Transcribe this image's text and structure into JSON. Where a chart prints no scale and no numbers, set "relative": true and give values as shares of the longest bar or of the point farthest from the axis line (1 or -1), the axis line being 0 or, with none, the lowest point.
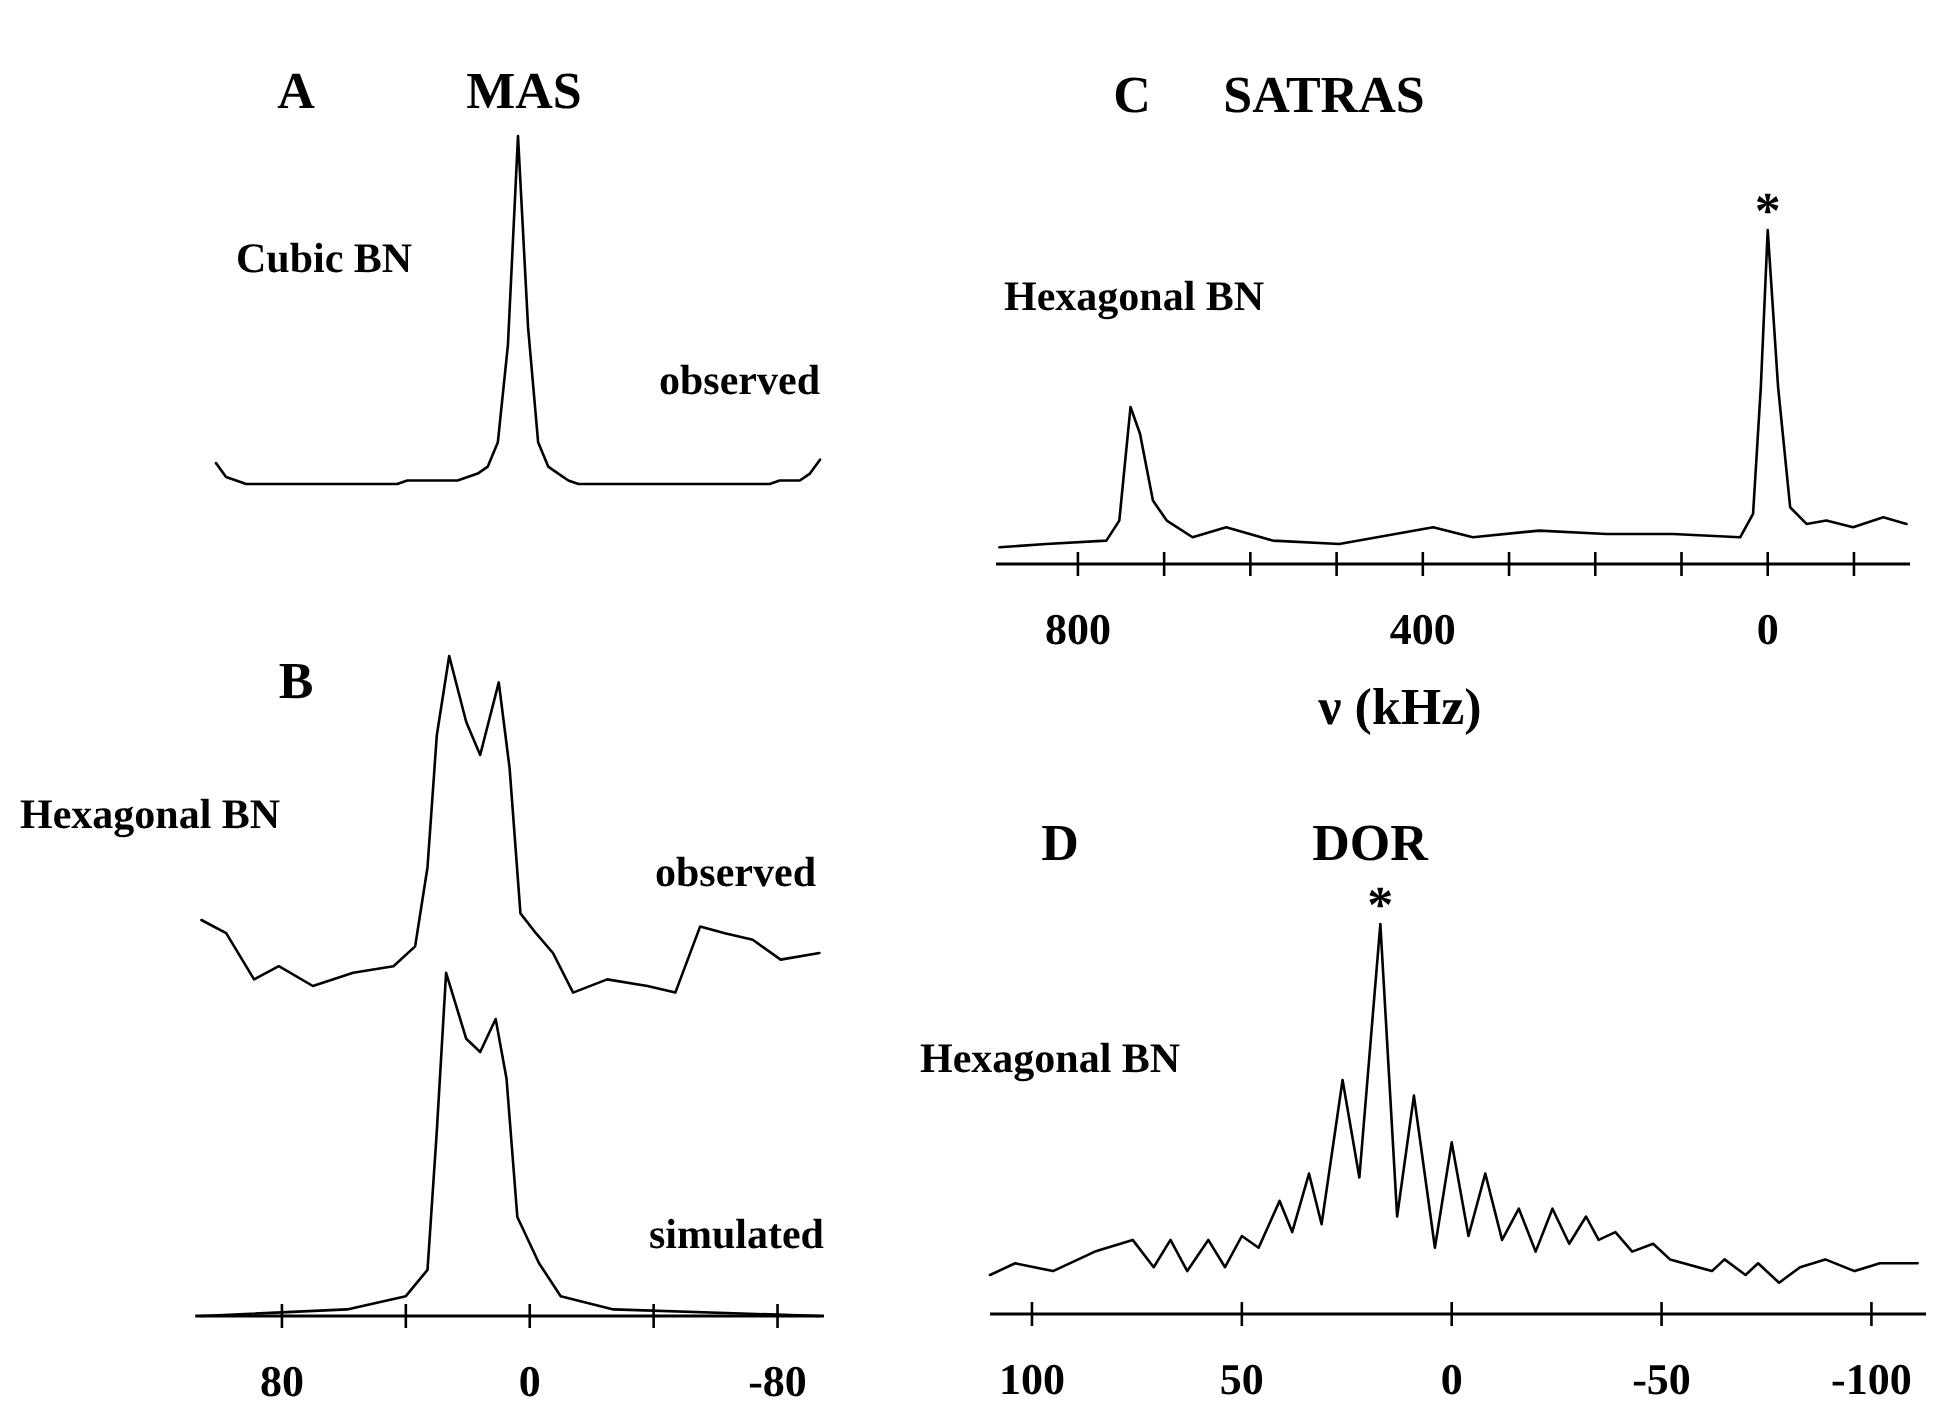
{
  "chart_data": [
    {
      "type": "line",
      "relative": true,
      "title": "MAS",
      "tick_labels": false,
      "categories": [
        null,
        null,
        null,
        null,
        null,
        null,
        null,
        null,
        null,
        null,
        null,
        null,
        null,
        null,
        null,
        null,
        null,
        null,
        null,
        null,
        null,
        null,
        null,
        null,
        null,
        null,
        null,
        null,
        null,
        null,
        null,
        null,
        null,
        null,
        null,
        null,
        null,
        null,
        null,
        null,
        null,
        null,
        null,
        null,
        null,
        null,
        null,
        null,
        null,
        null,
        null,
        null,
        null,
        null,
        null,
        null,
        null,
        null,
        null,
        null,
        null
      ],
      "annotations": [
        "A",
        "Cubic BN"
      ],
      "series": [
        {
          "name": "observed",
          "color": "#000000",
          "values": [
            0.06,
            0.02,
            0.01,
            0,
            0,
            0,
            0,
            0,
            0,
            0,
            0,
            0,
            0,
            0,
            0,
            0,
            0,
            0,
            0,
            0.01,
            0.01,
            0.01,
            0.01,
            0.01,
            0.01,
            0.02,
            0.03,
            0.05,
            0.12,
            0.4,
            1,
            0.45,
            0.12,
            0.05,
            0.03,
            0.01,
            0,
            0,
            0,
            0,
            0,
            0,
            0,
            0,
            0,
            0,
            0,
            0,
            0,
            0,
            0,
            0,
            0,
            0,
            0,
            0,
            0.01,
            0.01,
            0.01,
            0.03,
            0.07
          ]
        }
      ]
    },
    {
      "type": "line",
      "relative": true,
      "tick_labels": "x",
      "xlim": [
        108,
        -95
      ],
      "xticks": [
        80,
        {
          "value": 40,
          "label": null
        },
        0,
        {
          "value": -40,
          "label": null
        },
        -80
      ],
      "annotations": [
        "B",
        "Hexagonal BN"
      ],
      "series": [
        {
          "name": "observed",
          "color": "#000000",
          "x": [
            106,
            98,
            89,
            81,
            70,
            57,
            44,
            37,
            33,
            30,
            26,
            20.5,
            16,
            10,
            6.5,
            3,
            -2,
            -7.5,
            -14,
            -25,
            -38,
            -47,
            -55,
            -63,
            -72,
            -81,
            -93.5
          ],
          "values": [
            0.6,
            0.58,
            0.51,
            0.53,
            0.5,
            0.52,
            0.53,
            0.56,
            0.68,
            0.88,
            1,
            0.9,
            0.85,
            0.96,
            0.83,
            0.61,
            0.58,
            0.55,
            0.49,
            0.51,
            0.5,
            0.49,
            0.59,
            0.58,
            0.57,
            0.54,
            0.55
          ]
        },
        {
          "name": "simulated",
          "color": "#000000",
          "x": [
            106,
            59,
            40,
            33,
            30,
            27,
            20.5,
            16,
            11,
            7.5,
            4,
            -3,
            -10,
            -27,
            -93.5
          ],
          "values": [
            0,
            0.01,
            0.03,
            0.07,
            0.28,
            0.52,
            0.42,
            0.4,
            0.45,
            0.36,
            0.15,
            0.08,
            0.03,
            0.01,
            0
          ]
        }
      ]
    },
    {
      "type": "line",
      "relative": true,
      "title": "SATRAS",
      "xlabel": "ν (kHz)",
      "tick_labels": "x",
      "xlim": [
        895,
        -165
      ],
      "xticks": [
        800,
        {
          "value": 700,
          "label": null
        },
        {
          "value": 600,
          "label": null
        },
        {
          "value": 500,
          "label": null
        },
        400,
        {
          "value": 300,
          "label": null
        },
        {
          "value": 200,
          "label": null
        },
        {
          "value": 100,
          "label": null
        },
        0,
        {
          "value": -100,
          "label": null
        }
      ],
      "annotations": [
        "C",
        "Hexagonal BN",
        {
          "text": "*",
          "x": 0,
          "y": 1
        }
      ],
      "series": [
        {
          "color": "#000000",
          "x": [
            891,
            837,
            767,
            752,
            739,
            728,
            713,
            697,
            667,
            628,
            574,
            497,
            388,
            342,
            265,
            187,
            110,
            32,
            17,
            8,
            0,
            -12,
            -26,
            -45,
            -68,
            -99,
            -134,
            -161
          ],
          "values": [
            0.05,
            0.06,
            0.07,
            0.13,
            0.47,
            0.39,
            0.19,
            0.13,
            0.08,
            0.11,
            0.07,
            0.06,
            0.11,
            0.08,
            0.1,
            0.09,
            0.09,
            0.08,
            0.15,
            0.53,
            1,
            0.53,
            0.17,
            0.12,
            0.13,
            0.11,
            0.14,
            0.12
          ]
        }
      ]
    },
    {
      "type": "line",
      "relative": true,
      "title": "DOR",
      "tick_labels": "x",
      "xlim": [
        110,
        -113
      ],
      "xticks": [
        100,
        50,
        0,
        -50,
        -100
      ],
      "annotations": [
        "D",
        "Hexagonal BN",
        {
          "text": "*",
          "x": 17,
          "y": 1
        }
      ],
      "series": [
        {
          "color": "#000000",
          "x": [
            110,
            104,
            95,
            85,
            76,
            71,
            67,
            63,
            58,
            54,
            50,
            46,
            41,
            38,
            34,
            31,
            26,
            22,
            17,
            13,
            9,
            4,
            0,
            -4,
            -8,
            -12,
            -16,
            -20,
            -24,
            -28,
            -32,
            -35,
            -39,
            -43,
            -48,
            -52,
            -62,
            -65,
            -70,
            -73,
            -78,
            -83,
            -89,
            -96,
            -102,
            -111
          ],
          "values": [
            0.1,
            0.13,
            0.11,
            0.16,
            0.19,
            0.12,
            0.19,
            0.11,
            0.19,
            0.12,
            0.2,
            0.17,
            0.29,
            0.21,
            0.36,
            0.23,
            0.6,
            0.35,
            1,
            0.25,
            0.56,
            0.17,
            0.44,
            0.2,
            0.36,
            0.19,
            0.27,
            0.16,
            0.27,
            0.18,
            0.25,
            0.19,
            0.21,
            0.16,
            0.18,
            0.14,
            0.11,
            0.14,
            0.1,
            0.13,
            0.08,
            0.12,
            0.14,
            0.11,
            0.13,
            0.13
          ]
        }
      ]
    }
  ]
}
